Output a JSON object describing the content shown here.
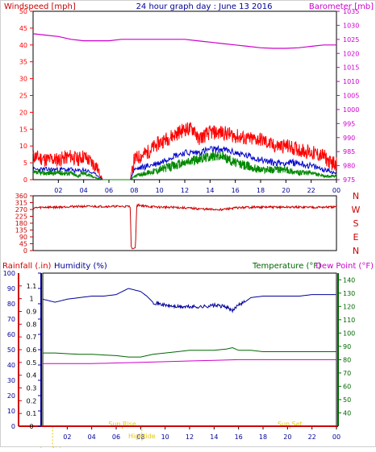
{
  "colors": {
    "wind_red": "#ff0000",
    "windspeed_blue": "#0000cc",
    "gust_green": "#008800",
    "baro_magenta": "#cc00cc",
    "direction_red": "#cc0000",
    "rain_red": "#cc0000",
    "humidity_blue": "#000099",
    "temperature_green": "#006600",
    "dewpoint_magenta": "#cc00cc",
    "tide_yellow": "#e6c800",
    "title_blue": "#000099"
  },
  "chart_data": [
    {
      "type": "line",
      "title": "24 hour graph day : June 13 2016",
      "ylabel": "Windspeed [mph]",
      "y2label": "Barometer [mb]",
      "xticks": [
        "02",
        "04",
        "06",
        "08",
        "10",
        "12",
        "14",
        "16",
        "18",
        "20",
        "22",
        "00"
      ],
      "xlim": [
        0,
        24
      ],
      "ylim": [
        0,
        50
      ],
      "yticks": [
        "0",
        "5",
        "10",
        "15",
        "20",
        "25",
        "30",
        "35",
        "40",
        "45",
        "50"
      ],
      "y2lim": [
        975,
        1035
      ],
      "y2ticks": [
        "975",
        "980",
        "985",
        "990",
        "995",
        "1000",
        "1005",
        "1010",
        "1015",
        "1020",
        "1025",
        "1030",
        "1035"
      ],
      "grid": false,
      "series": [
        {
          "role": "wind_max",
          "axis": "left",
          "x": [
            0,
            1,
            2,
            3,
            3.5,
            4,
            5,
            5.5,
            7.7,
            8,
            9,
            10,
            11,
            12,
            12.8,
            13,
            14,
            15,
            16,
            17,
            18,
            19,
            20,
            21,
            22,
            23,
            23.5,
            24
          ],
          "y": [
            7,
            6,
            6,
            7,
            6,
            7,
            4,
            0,
            0,
            6,
            8,
            11,
            13,
            15,
            15,
            12,
            14,
            14,
            13,
            12,
            12,
            10,
            10,
            9,
            8,
            7,
            5,
            5
          ]
        },
        {
          "role": "wind_avg",
          "axis": "left",
          "x": [
            0,
            1,
            2,
            3,
            3.5,
            4,
            5,
            5.5,
            7.7,
            8,
            9,
            10,
            11,
            12,
            13,
            14,
            15,
            16,
            17,
            18,
            19,
            20,
            21,
            22,
            23,
            24
          ],
          "y": [
            3,
            3,
            3,
            3,
            2.5,
            3,
            1.5,
            0,
            0,
            3,
            4,
            5,
            7,
            8,
            8,
            9,
            9,
            8,
            7,
            6,
            5,
            5,
            5,
            4,
            3,
            2
          ]
        },
        {
          "role": "wind_gust",
          "axis": "left",
          "x": [
            0,
            1,
            2,
            3,
            3.5,
            4,
            5,
            5.5,
            7.7,
            8,
            9,
            10,
            11,
            12,
            13,
            14,
            15,
            16,
            17,
            18,
            19,
            20,
            21,
            22,
            23,
            24
          ],
          "y": [
            2,
            2,
            2,
            2,
            1,
            2,
            0.5,
            0,
            0,
            1,
            2,
            3,
            4,
            5,
            6,
            7,
            7,
            5,
            4,
            3,
            3,
            3,
            2,
            2,
            1,
            1
          ]
        },
        {
          "name": "Barometer [mb]",
          "axis": "right",
          "x": [
            0,
            1,
            2,
            3,
            4,
            5,
            6,
            7,
            8,
            9,
            10,
            11,
            12,
            13,
            14,
            15,
            16,
            17,
            18,
            19,
            20,
            21,
            22,
            23,
            24
          ],
          "y": [
            1027,
            1026.5,
            1026,
            1025,
            1024.5,
            1024.5,
            1024.5,
            1025,
            1025,
            1025,
            1025,
            1025,
            1025,
            1024.5,
            1024,
            1023.5,
            1023,
            1022.5,
            1022,
            1021.8,
            1021.8,
            1022,
            1022.5,
            1023,
            1023
          ]
        }
      ]
    },
    {
      "type": "line",
      "ylabel": "Wind Direction",
      "xlim": [
        0,
        24
      ],
      "ylim": [
        0,
        360
      ],
      "yticks": [
        "0",
        "45",
        "90",
        "135",
        "180",
        "225",
        "270",
        "315",
        "360"
      ],
      "compass": [
        "N",
        "W",
        "S",
        "E",
        "N"
      ],
      "series": [
        {
          "axis": "left",
          "x": [
            0,
            1,
            2,
            3,
            4,
            5,
            6,
            7,
            7.7,
            7.75,
            7.85,
            8.1,
            8.2,
            8.3,
            9,
            10,
            11,
            12,
            13,
            14,
            15,
            16,
            17,
            18,
            19,
            20,
            21,
            22,
            23,
            24
          ],
          "y": [
            280,
            285,
            285,
            290,
            290,
            290,
            290,
            290,
            290,
            30,
            10,
            20,
            290,
            300,
            290,
            285,
            285,
            280,
            275,
            270,
            270,
            280,
            285,
            285,
            285,
            285,
            285,
            285,
            285,
            285
          ]
        }
      ]
    },
    {
      "type": "line",
      "xticks": [
        "02",
        "04",
        "06",
        "08",
        "10",
        "12",
        "14",
        "16",
        "18",
        "20",
        "22",
        "00"
      ],
      "xlim": [
        0,
        24
      ],
      "y_rain_label": "Rainfall (.in)",
      "y_rain_lim": [
        0,
        1.2
      ],
      "y_rain_ticks": [
        "0",
        "0.1",
        "0.2",
        "0.3",
        "0.4",
        "0.5",
        "0.6",
        "0.7",
        "0.8",
        "0.9",
        "1",
        "1.1"
      ],
      "y_hum_label": "Humidity (%)",
      "y_hum_lim": [
        0,
        100
      ],
      "y_hum_ticks": [
        "0",
        "10",
        "20",
        "30",
        "40",
        "50",
        "60",
        "70",
        "80",
        "90",
        "100"
      ],
      "y_temp_label": "Temperature (°F)",
      "y_temp_lim": [
        30,
        145
      ],
      "y_temp_ticks": [
        "40",
        "50",
        "60",
        "70",
        "80",
        "90",
        "100",
        "110",
        "120",
        "130",
        "140"
      ],
      "y_dew_label": "Dew Point (°F)",
      "annotations": [
        {
          "label": "Lowtide",
          "x": 0.8,
          "y": 11
        },
        {
          "label": "Sun Rise",
          "x": 6.5,
          "y": 30
        },
        {
          "label": "Hightide",
          "x": 8.1,
          "y": 21
        },
        {
          "label": "Sun Set",
          "x": 20.2,
          "y": 30
        }
      ],
      "series": [
        {
          "name": "Humidity (%)",
          "axis": "humidity",
          "x": [
            0,
            0.5,
            1,
            2,
            3,
            4,
            5,
            6,
            6.5,
            7,
            8,
            8.5,
            9,
            10,
            11,
            12,
            13,
            14,
            15,
            15.5,
            16,
            16.5,
            17,
            18,
            19,
            20,
            21,
            22,
            23,
            24
          ],
          "y": [
            83,
            82,
            81,
            83,
            84,
            85,
            85,
            86,
            88,
            90,
            88,
            85,
            81,
            79,
            78,
            78,
            78,
            79,
            78,
            75,
            80,
            81,
            84,
            85,
            85,
            85,
            85,
            86,
            86,
            86
          ]
        },
        {
          "name": "Temperature (°F)",
          "axis": "temperature",
          "x": [
            0,
            1,
            2,
            3,
            4,
            5,
            6,
            7,
            8,
            9,
            10,
            11,
            12,
            13,
            14,
            15,
            15.5,
            16,
            17,
            18,
            19,
            20,
            21,
            22,
            23,
            24
          ],
          "y": [
            85,
            85,
            84.5,
            84,
            84,
            83.5,
            83,
            82,
            82,
            84,
            85,
            86,
            87,
            87,
            87,
            88,
            89,
            87,
            87,
            86,
            86,
            86,
            86,
            86,
            86,
            86
          ]
        },
        {
          "name": "Dew Point (°F)",
          "axis": "temperature",
          "x": [
            0,
            2,
            4,
            6,
            8,
            10,
            12,
            14,
            16,
            18,
            20,
            22,
            24
          ],
          "y": [
            77,
            77,
            77,
            77.5,
            78,
            78.5,
            79,
            79.5,
            80,
            80,
            80,
            80,
            80
          ]
        },
        {
          "name": "Rainfall (.in)",
          "axis": "rain",
          "x": [
            0,
            24
          ],
          "y": [
            0,
            0
          ]
        }
      ]
    }
  ]
}
